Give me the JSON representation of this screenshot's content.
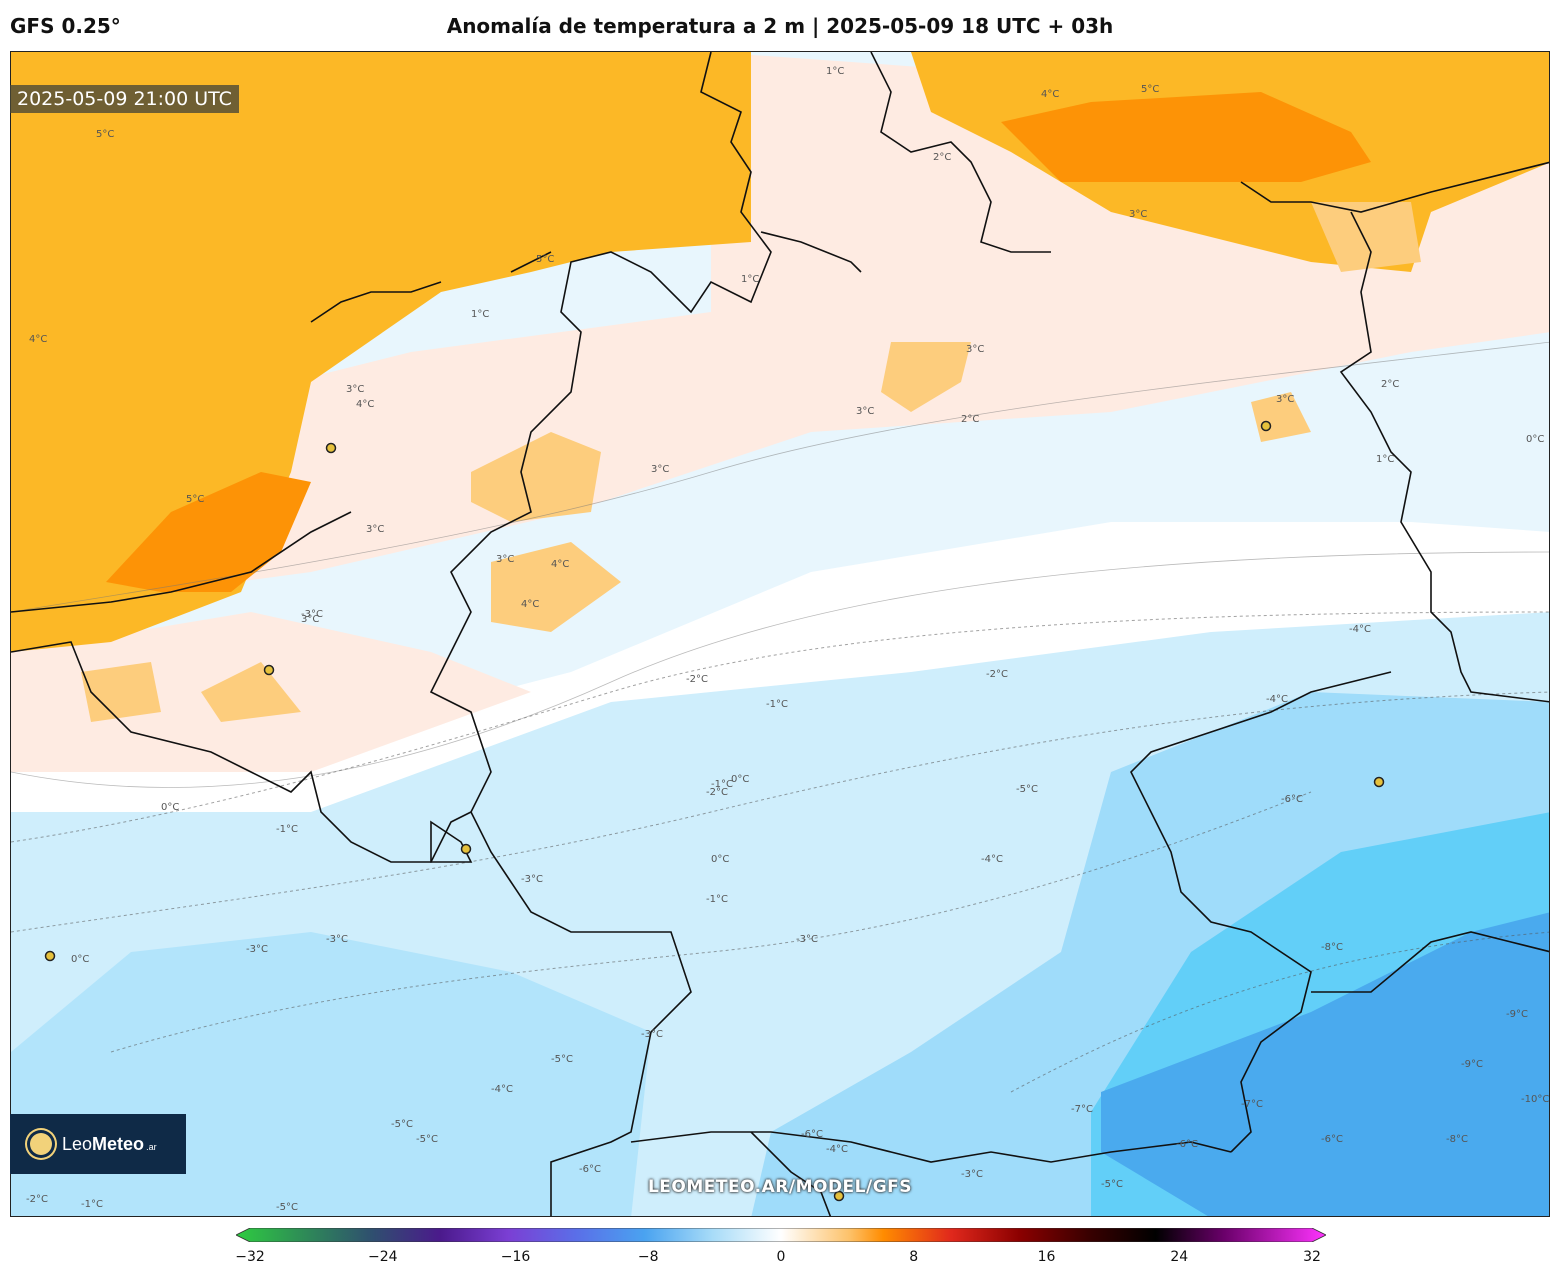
{
  "header": {
    "model": "GFS 0.25°",
    "title": "Anomalía de temperatura a 2 m | 2025-05-09 18 UTC + 03h"
  },
  "valid_time": "2025-05-09 21:00 UTC",
  "logo": {
    "word1": "Leo",
    "word2": "Meteo",
    "suffix": ".ar"
  },
  "watermark": "LEOMETEO.AR/MODEL/GFS",
  "colorbar": {
    "min": -32,
    "max": 32,
    "ticks": [
      "-32",
      "-24",
      "-16",
      "-8",
      "0",
      "8",
      "16",
      "24",
      "32"
    ],
    "stops": [
      {
        "v": -32,
        "c": "#2ecc40"
      },
      {
        "v": -28,
        "c": "#2e8b57"
      },
      {
        "v": -24,
        "c": "#2f4f6f"
      },
      {
        "v": -20,
        "c": "#4b1a8c"
      },
      {
        "v": -16,
        "c": "#7b3fd4"
      },
      {
        "v": -12,
        "c": "#5a6fe8"
      },
      {
        "v": -8,
        "c": "#4aa3f0"
      },
      {
        "v": -4,
        "c": "#a8dcf8"
      },
      {
        "v": 0,
        "c": "#ffffff"
      },
      {
        "v": 4,
        "c": "#fdc26a"
      },
      {
        "v": 6,
        "c": "#ff8c00"
      },
      {
        "v": 10,
        "c": "#e0281c"
      },
      {
        "v": 14,
        "c": "#8b0000"
      },
      {
        "v": 18,
        "c": "#3a0000"
      },
      {
        "v": 22,
        "c": "#000000"
      },
      {
        "v": 26,
        "c": "#6a006a"
      },
      {
        "v": 32,
        "c": "#ff33ff"
      }
    ]
  },
  "contour_labels": [
    "1°C",
    "1°C",
    "1°C",
    "1°C",
    "2°C",
    "2°C",
    "2°C",
    "3°C",
    "3°C",
    "3°C",
    "3°C",
    "3°C",
    "3°C",
    "3°C",
    "3°C",
    "3°C",
    "4°C",
    "4°C",
    "4°C",
    "4°C",
    "4°C",
    "5°C",
    "5°C",
    "5°C",
    "5°C",
    "0°C",
    "0°C",
    "0°C",
    "0°C",
    "0°C",
    "-1°C",
    "-1°C",
    "-1°C",
    "-1°C",
    "-1°C",
    "-2°C",
    "-2°C",
    "-2°C",
    "-2°C",
    "-3°C",
    "-3°C",
    "-3°C",
    "-3°C",
    "-3°C",
    "-3°C",
    "-3°C",
    "-4°C",
    "-4°C",
    "-4°C",
    "-4°C",
    "-4°C",
    "-5°C",
    "-5°C",
    "-5°C",
    "-5°C",
    "-5°C",
    "-5°C",
    "-6°C",
    "-6°C",
    "-6°C",
    "-6°C",
    "-6°C",
    "-7°C",
    "-7°C",
    "-8°C",
    "-8°C",
    "-9°C",
    "-9°C",
    "-10°C"
  ]
}
